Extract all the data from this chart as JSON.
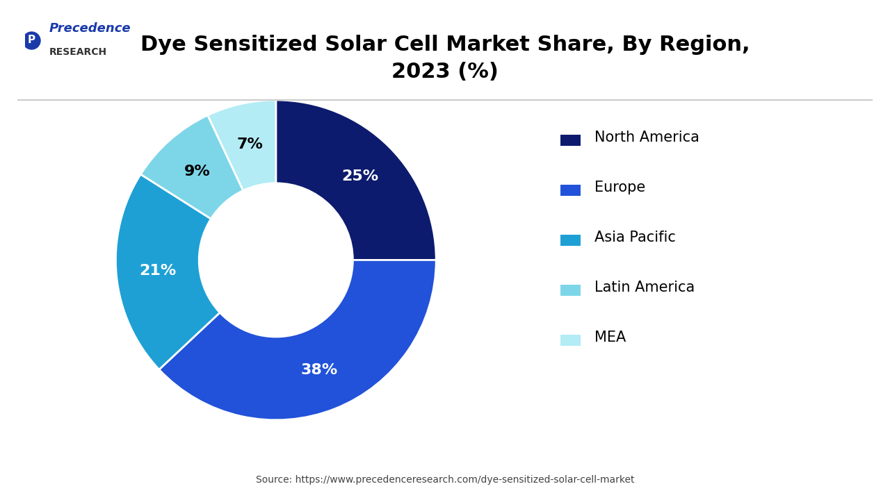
{
  "title": "Dye Sensitized Solar Cell Market Share, By Region,\n2023 (%)",
  "regions": [
    "North America",
    "Europe",
    "Asia Pacific",
    "Latin America",
    "MEA"
  ],
  "values": [
    25,
    38,
    21,
    9,
    7
  ],
  "colors": [
    "#0d1b6e",
    "#2152d9",
    "#1ea0d5",
    "#7dd6e8",
    "#b3ecf5"
  ],
  "source": "Source: https://www.precedenceresearch.com/dye-sensitized-solar-cell-market",
  "logo_text_1": "Precedence",
  "logo_text_2": "RESEARCH",
  "background_color": "#ffffff",
  "label_colors": [
    "white",
    "white",
    "white",
    "black",
    "black"
  ]
}
